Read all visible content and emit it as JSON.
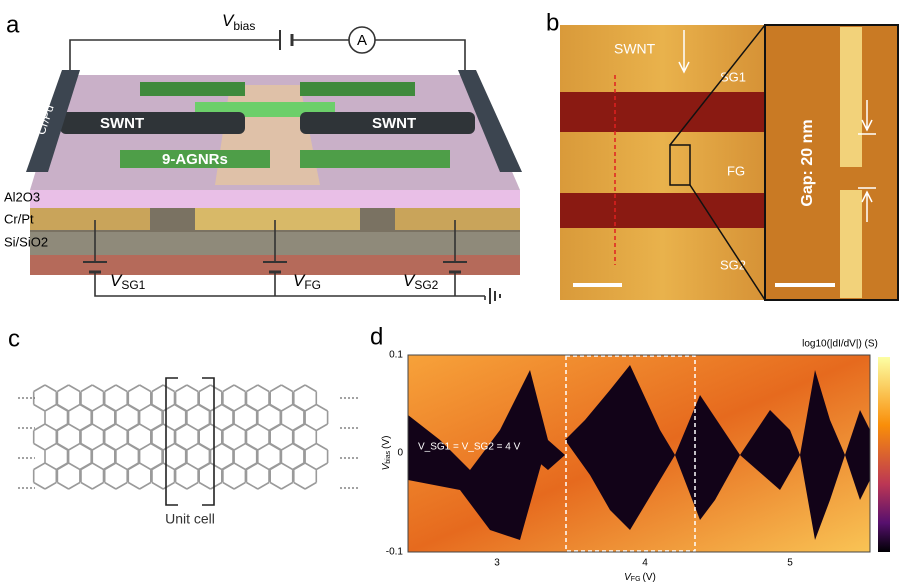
{
  "panel_a": {
    "label": "a",
    "v_bias": {
      "symbol": "V",
      "subscript": "bias"
    },
    "ammeter": "A",
    "electrode": "Cr/Pd",
    "swnt_left": "SWNT",
    "swnt_right": "SWNT",
    "ribbons": "9-AGNRs",
    "layers": [
      "Al2O3",
      "Cr/Pt",
      "Si/SiO2"
    ],
    "v_sg1": {
      "symbol": "V",
      "subscript": "SG1"
    },
    "v_fg": {
      "symbol": "V",
      "subscript": "FG"
    },
    "v_sg2": {
      "symbol": "V",
      "subscript": "SG2"
    }
  },
  "panel_b": {
    "label": "b",
    "swnt": "SWNT",
    "gates": [
      "SG1",
      "FG",
      "SG2"
    ],
    "gap": "Gap: 20 nm"
  },
  "panel_c": {
    "label": "c",
    "caption": "Unit cell"
  },
  "panel_d": {
    "label": "d",
    "colorbar_label": "log10(|dI/dV|) (S)",
    "y_label": {
      "symbol": "V",
      "subscript": "bias",
      "unit": "(V)"
    },
    "x_label": {
      "symbol": "V",
      "subscript": "FG",
      "unit": "(V)"
    },
    "y_ticks": [
      "0.1",
      "0",
      "-0.1"
    ],
    "x_ticks": [
      "3",
      "4",
      "5"
    ],
    "annotation": "V_SG1 = V_SG2 = 4 V"
  }
}
